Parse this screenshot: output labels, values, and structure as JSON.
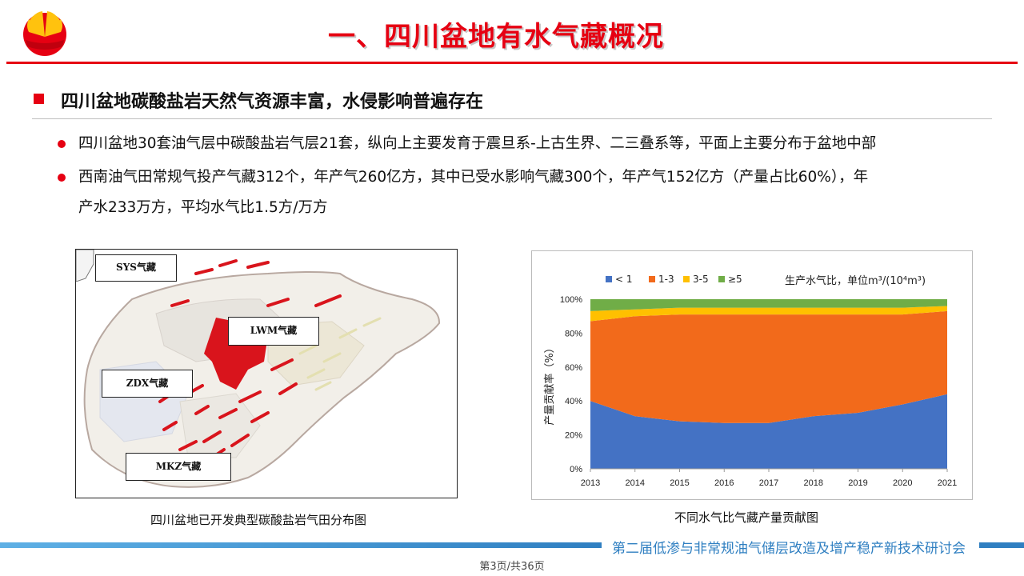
{
  "header": {
    "title": "一、四川盆地有水气藏概况"
  },
  "section": {
    "heading": "四川盆地碳酸盐岩天然气资源丰富，水侵影响普遍存在"
  },
  "bullets": [
    "四川盆地30套油气层中碳酸盐岩气层21套，纵向上主要发育于震旦系-上古生界、二三叠系等，平面上主要分布于盆地中部",
    "西南油气田常规气投产气藏312个，年产气260亿方，其中已受水影响气藏300个，年产气152亿方（产量占比60%），年",
    "产水233万方，平均水气比1.5方/万方"
  ],
  "map": {
    "callouts": [
      "SYS气藏",
      "LWM气藏",
      "ZDX气藏",
      "MKZ气藏"
    ],
    "caption": "四川盆地已开发典型碳酸盐岩气田分布图"
  },
  "chart_data": {
    "type": "area",
    "stacked": true,
    "x": [
      2013,
      2014,
      2015,
      2016,
      2017,
      2018,
      2019,
      2020,
      2021
    ],
    "series": [
      {
        "name": "< 1",
        "color": "#4472c4",
        "values": [
          40,
          31,
          28,
          27,
          27,
          31,
          33,
          38,
          44
        ]
      },
      {
        "name": "1-3",
        "color": "#f26a1b",
        "values": [
          47,
          59,
          63,
          64,
          64,
          60,
          58,
          53,
          49
        ]
      },
      {
        "name": "3-5",
        "color": "#ffc000",
        "values": [
          6,
          4,
          4,
          4,
          4,
          4,
          4,
          4,
          3
        ]
      },
      {
        "name": "≥5",
        "color": "#70ad47",
        "values": [
          7,
          6,
          5,
          5,
          5,
          5,
          5,
          5,
          4
        ]
      }
    ],
    "ylabel": "产量贡献率（%）",
    "yticks": [
      "0%",
      "20%",
      "40%",
      "60%",
      "80%",
      "100%"
    ],
    "ylim": [
      0,
      100
    ],
    "legend_note": "生产水气比，单位m³/(10⁴m³)",
    "legend_position": "top",
    "caption": "不同水气比气藏产量贡献图"
  },
  "footer": {
    "conference": "第二届低渗与非常规油气储层改造及增产稳产新技术研讨会",
    "page": "第3页/共36页"
  },
  "colors": {
    "accent": "#e60012",
    "footer_blue": "#2f7fc1"
  }
}
